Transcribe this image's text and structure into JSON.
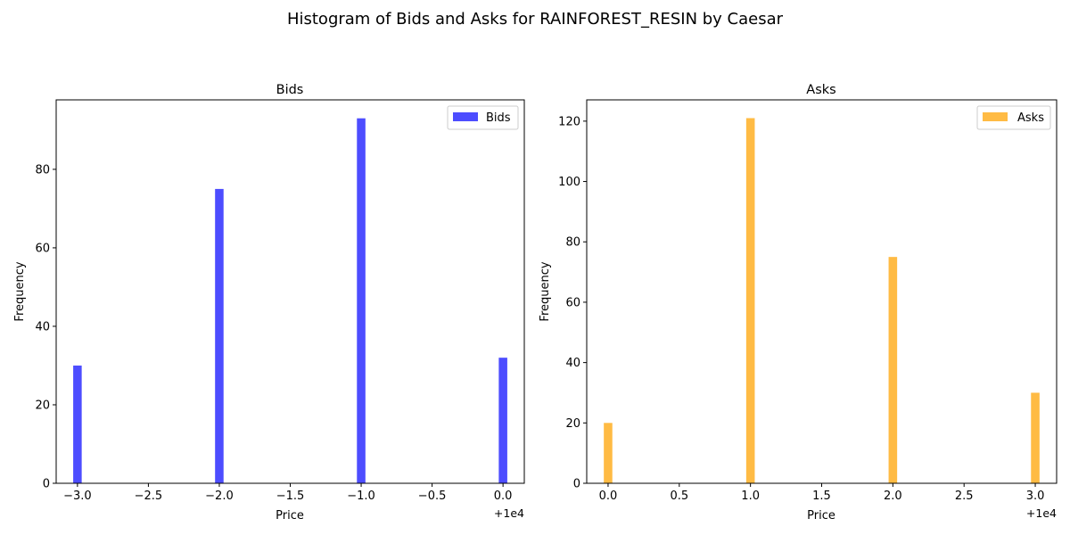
{
  "figure": {
    "suptitle": "Histogram of Bids and Asks for RAINFOREST_RESIN by Caesar"
  },
  "chart_data": [
    {
      "type": "bar",
      "subtype": "histogram",
      "title": "Bids",
      "xlabel": "Price",
      "ylabel": "Frequency",
      "x_offset_label": "+1e4",
      "x_offset": 10000,
      "xlim": [
        -3.15,
        0.15
      ],
      "ylim": [
        0,
        97.7
      ],
      "xticks": [
        -3.0,
        -2.5,
        -2.0,
        -1.5,
        -1.0,
        -0.5,
        0.0
      ],
      "xtick_labels": [
        "−3.0",
        "−2.5",
        "−2.0",
        "−1.5",
        "−1.0",
        "−0.5",
        "0.0"
      ],
      "yticks": [
        0,
        20,
        40,
        60,
        80
      ],
      "ytick_labels": [
        "0",
        "20",
        "40",
        "60",
        "80"
      ],
      "x": [
        -3.0,
        -2.0,
        -1.0,
        0.0
      ],
      "values": [
        30,
        75,
        93,
        32
      ],
      "bin_width": 0.06,
      "legend": {
        "label": "Bids",
        "position": "upper right"
      },
      "color": "#4d4dff",
      "grid": false
    },
    {
      "type": "bar",
      "subtype": "histogram",
      "title": "Asks",
      "xlabel": "Price",
      "ylabel": "Frequency",
      "x_offset_label": "+1e4",
      "x_offset": 10000,
      "xlim": [
        -0.15,
        3.15
      ],
      "ylim": [
        0,
        127.05
      ],
      "xticks": [
        0.0,
        0.5,
        1.0,
        1.5,
        2.0,
        2.5,
        3.0
      ],
      "xtick_labels": [
        "0.0",
        "0.5",
        "1.0",
        "1.5",
        "2.0",
        "2.5",
        "3.0"
      ],
      "yticks": [
        0,
        20,
        40,
        60,
        80,
        100,
        120
      ],
      "ytick_labels": [
        "0",
        "20",
        "40",
        "60",
        "80",
        "100",
        "120"
      ],
      "x": [
        0.0,
        1.0,
        2.0,
        3.0
      ],
      "values": [
        20,
        121,
        75,
        30
      ],
      "bin_width": 0.06,
      "legend": {
        "label": "Asks",
        "position": "upper right"
      },
      "color": "#ffbb44",
      "grid": false
    }
  ]
}
